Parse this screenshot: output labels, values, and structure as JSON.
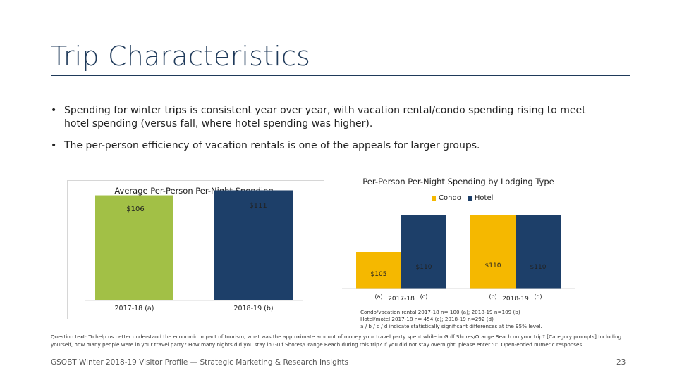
{
  "slide": {
    "title": "Trip Characteristics",
    "bullets": [
      "Spending for winter trips is consistent year over year, with vacation rental/condo spending rising to meet hotel spending (versus fall, where hotel spending was higher).",
      "The per-person efficiency of vacation rentals is one of the appeals for larger groups."
    ],
    "bullet_symbol": "•",
    "notes": [
      "Condo/vacation rental 2017-18 n= 100 (a); 2018-19 n=109 (b)",
      "Hotel/motel 2017-18 n= 454 (c); 2018-19 n=292 (d)",
      "a / b / c / d indicate statistically significant differences at the 95% level."
    ],
    "question_text": "Question text: To help us better understand the economic impact of tourism, what was the approximate amount of money your travel party spent while in Gulf Shores/Orange Beach on your trip? [Category prompts] Including yourself, how many people were in your travel party? How many nights did you stay in Gulf Shores/Orange Beach during this trip? If you did not stay overnight, please enter '0'. Open-ended numeric responses.",
    "footer": "GSOBT Winter 2018-19 Visitor Profile — Strategic Marketing & Research Insights",
    "page_number": "23"
  },
  "colors": {
    "title": "#1f3a5a",
    "green": "#a2c046",
    "navy": "#1d3f69",
    "gold": "#f5b800",
    "hotel": "#1d3f69"
  },
  "chart_data": [
    {
      "type": "bar",
      "title": "Average Per-Person Per-Night Spending",
      "categories": [
        "2017-18 (a)",
        "2018-19 (b)"
      ],
      "values": [
        106,
        111
      ],
      "data_labels": [
        "$106",
        "$111"
      ],
      "colors": [
        "#a2c046",
        "#1d3f69"
      ],
      "ylim": [
        0,
        120
      ],
      "grid": false,
      "legend": "none"
    },
    {
      "type": "bar",
      "title": "Per-Person Per-Night Spending by Lodging Type",
      "categories": [
        "2017-18",
        "2018-19"
      ],
      "series": [
        {
          "name": "Condo",
          "values": [
            105,
            110
          ],
          "labels": [
            "$105",
            "$110"
          ],
          "sig": [
            "(a)",
            "(b)"
          ],
          "color": "#f5b800"
        },
        {
          "name": "Hotel",
          "values": [
            110,
            110
          ],
          "labels": [
            "$110",
            "$110"
          ],
          "sig": [
            "(c)",
            "(d)"
          ],
          "color": "#1d3f69"
        }
      ],
      "ylim": [
        100,
        115
      ],
      "grid": false,
      "legend": "top-right"
    }
  ]
}
